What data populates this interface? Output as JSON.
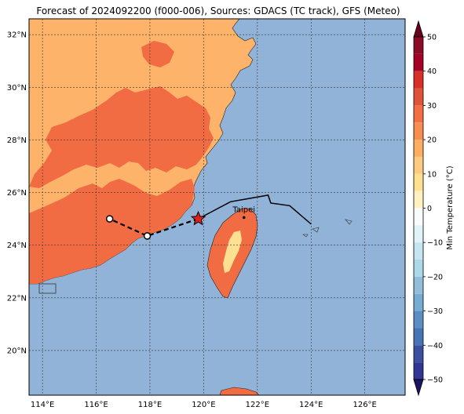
{
  "title": "Forecast of 2024092200 (f000-006), Sources: GDACS (TC track), GFS (Meteo)",
  "map": {
    "lon_range": [
      113.5,
      127.5
    ],
    "lat_range": [
      18.3,
      32.6
    ],
    "x_ticks": [
      "114°E",
      "116°E",
      "118°E",
      "120°E",
      "122°E",
      "124°E",
      "126°E"
    ],
    "x_tick_values": [
      114,
      116,
      118,
      120,
      122,
      124,
      126
    ],
    "y_ticks": [
      "20°N",
      "22°N",
      "24°N",
      "26°N",
      "28°N",
      "30°N",
      "32°N"
    ],
    "y_tick_values": [
      20,
      22,
      24,
      26,
      28,
      30,
      32
    ],
    "gridlines": true,
    "colors": {
      "ocean": "#91b3d8",
      "land_20_30": "#fdb36a",
      "land_30_40": "#f26c43",
      "land_10_20": "#fee090",
      "coast": "#222222"
    }
  },
  "cities": [
    {
      "name": "Taipei",
      "lon": 121.5,
      "lat": 25.05
    }
  ],
  "track": {
    "past": [
      [
        121.9,
        25.9
      ]
    ],
    "dashed_forecast": [
      [
        119.8,
        25.0
      ],
      [
        117.9,
        24.35
      ],
      [
        116.5,
        25.0
      ]
    ],
    "solid_track": [
      [
        119.8,
        25.0
      ],
      [
        121.0,
        25.65
      ],
      [
        122.4,
        25.9
      ],
      [
        122.5,
        25.6
      ],
      [
        123.2,
        25.5
      ],
      [
        124.0,
        24.8
      ]
    ],
    "current_position": [
      119.8,
      25.0
    ],
    "star_color": "#e02020"
  },
  "colorbar": {
    "label": "Min Temperature (°C)",
    "ticks": [
      "50",
      "40",
      "30",
      "20",
      "10",
      "0",
      "−10",
      "−20",
      "−30",
      "−40",
      "−50"
    ],
    "levels": [
      {
        "from": 50,
        "to": 45,
        "color": "#8b0a26"
      },
      {
        "from": 45,
        "to": 40,
        "color": "#a50026"
      },
      {
        "from": 40,
        "to": 35,
        "color": "#d73027"
      },
      {
        "from": 35,
        "to": 30,
        "color": "#e0523a"
      },
      {
        "from": 30,
        "to": 25,
        "color": "#f46d43"
      },
      {
        "from": 25,
        "to": 20,
        "color": "#f88c51"
      },
      {
        "from": 20,
        "to": 15,
        "color": "#fdae61"
      },
      {
        "from": 15,
        "to": 10,
        "color": "#fec980"
      },
      {
        "from": 10,
        "to": 5,
        "color": "#fee090"
      },
      {
        "from": 5,
        "to": 0,
        "color": "#fff2c0"
      },
      {
        "from": 0,
        "to": -5,
        "color": "#f8fcfd"
      },
      {
        "from": -5,
        "to": -10,
        "color": "#e0f3f8"
      },
      {
        "from": -10,
        "to": -15,
        "color": "#c5e6f0"
      },
      {
        "from": -15,
        "to": -20,
        "color": "#abd9e9"
      },
      {
        "from": -20,
        "to": -25,
        "color": "#91bfdb"
      },
      {
        "from": -25,
        "to": -30,
        "color": "#74add1"
      },
      {
        "from": -30,
        "to": -35,
        "color": "#5b8fc4"
      },
      {
        "from": -35,
        "to": -40,
        "color": "#4575b4"
      },
      {
        "from": -40,
        "to": -45,
        "color": "#3a4fa0"
      },
      {
        "from": -45,
        "to": -50,
        "color": "#313695"
      }
    ],
    "extend_top_color": "#67001f",
    "extend_bottom_color": "#1b1464"
  }
}
